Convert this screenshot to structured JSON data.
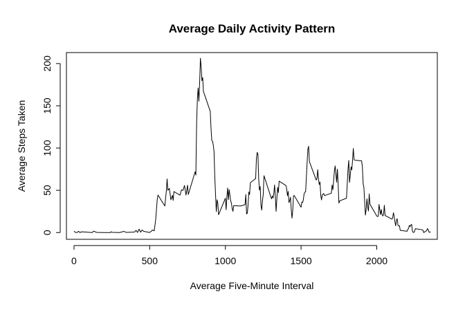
{
  "chart_data": {
    "type": "line",
    "title": "Average Daily Activity Pattern",
    "xlabel": "Average Five-Minute Interval",
    "ylabel": "Average Steps Taken",
    "xlim": [
      -50,
      2400
    ],
    "ylim": [
      -8,
      213
    ],
    "x_ticks": [
      0,
      500,
      1000,
      1500,
      2000
    ],
    "y_ticks": [
      0,
      50,
      100,
      150,
      200
    ],
    "grid": false,
    "legend": "none",
    "series": [
      {
        "color": "#000000",
        "points": [
          [
            0,
            1.7
          ],
          [
            10,
            0.1
          ],
          [
            20,
            0.1
          ],
          [
            30,
            1.5
          ],
          [
            40,
            0.0
          ],
          [
            50,
            0.9
          ],
          [
            100,
            0.3
          ],
          [
            120,
            0.0
          ],
          [
            130,
            1.7
          ],
          [
            150,
            0.2
          ],
          [
            200,
            0.0
          ],
          [
            240,
            0.0
          ],
          [
            245,
            1.0
          ],
          [
            250,
            0.3
          ],
          [
            300,
            0.0
          ],
          [
            330,
            1.4
          ],
          [
            345,
            0.2
          ],
          [
            400,
            0.6
          ],
          [
            410,
            2.6
          ],
          [
            420,
            0.1
          ],
          [
            430,
            4.1
          ],
          [
            440,
            0.4
          ],
          [
            450,
            3.1
          ],
          [
            460,
            1.5
          ],
          [
            470,
            1.1
          ],
          [
            500,
            0.1
          ],
          [
            520,
            3.0
          ],
          [
            530,
            2.1
          ],
          [
            540,
            16.0
          ],
          [
            550,
            39.5
          ],
          [
            555,
            44.4
          ],
          [
            600,
            31.4
          ],
          [
            610,
            49.3
          ],
          [
            615,
            63.4
          ],
          [
            620,
            50.0
          ],
          [
            630,
            52.2
          ],
          [
            640,
            38.8
          ],
          [
            650,
            44.0
          ],
          [
            655,
            38.0
          ],
          [
            660,
            48.5
          ],
          [
            700,
            44.2
          ],
          [
            710,
            50.5
          ],
          [
            720,
            49.9
          ],
          [
            730,
            55.7
          ],
          [
            740,
            44.3
          ],
          [
            750,
            56.0
          ],
          [
            755,
            45.0
          ],
          [
            800,
            71.9
          ],
          [
            805,
            68.0
          ],
          [
            810,
            129.4
          ],
          [
            815,
            157.5
          ],
          [
            820,
            171.2
          ],
          [
            825,
            155.4
          ],
          [
            830,
            177.3
          ],
          [
            835,
            206.2
          ],
          [
            840,
            195.9
          ],
          [
            845,
            179.6
          ],
          [
            850,
            183.4
          ],
          [
            855,
            167.0
          ],
          [
            900,
            143.5
          ],
          [
            905,
            124.0
          ],
          [
            910,
            109.1
          ],
          [
            915,
            108.1
          ],
          [
            920,
            103.7
          ],
          [
            925,
            95.9
          ],
          [
            930,
            66.2
          ],
          [
            935,
            45.2
          ],
          [
            940,
            24.8
          ],
          [
            945,
            38.8
          ],
          [
            950,
            34.98
          ],
          [
            955,
            21.1
          ],
          [
            1000,
            40.6
          ],
          [
            1005,
            27.0
          ],
          [
            1010,
            42.4
          ],
          [
            1015,
            52.7
          ],
          [
            1020,
            38.9
          ],
          [
            1025,
            50.8
          ],
          [
            1030,
            44.3
          ],
          [
            1035,
            37.4
          ],
          [
            1040,
            34.7
          ],
          [
            1045,
            28.3
          ],
          [
            1050,
            25.1
          ],
          [
            1055,
            31.9
          ],
          [
            1100,
            31.4
          ],
          [
            1130,
            33.0
          ],
          [
            1135,
            45.0
          ],
          [
            1140,
            22.0
          ],
          [
            1145,
            23.0
          ],
          [
            1150,
            33.0
          ],
          [
            1155,
            48.0
          ],
          [
            1160,
            45.0
          ],
          [
            1165,
            59.0
          ],
          [
            1200,
            63.9
          ],
          [
            1205,
            87.5
          ],
          [
            1210,
            94.8
          ],
          [
            1215,
            92.8
          ],
          [
            1220,
            63.4
          ],
          [
            1225,
            50.2
          ],
          [
            1230,
            54.5
          ],
          [
            1235,
            32.4
          ],
          [
            1240,
            26.5
          ],
          [
            1245,
            37.7
          ],
          [
            1250,
            45.1
          ],
          [
            1255,
            67.3
          ],
          [
            1300,
            42.3
          ],
          [
            1305,
            39.9
          ],
          [
            1310,
            43.3
          ],
          [
            1315,
            40.98
          ],
          [
            1320,
            46.2
          ],
          [
            1325,
            56.4
          ],
          [
            1330,
            42.8
          ],
          [
            1335,
            25.1
          ],
          [
            1340,
            39.9
          ],
          [
            1345,
            53.5
          ],
          [
            1350,
            47.3
          ],
          [
            1355,
            60.8
          ],
          [
            1400,
            55.7
          ],
          [
            1405,
            51.9
          ],
          [
            1410,
            43.6
          ],
          [
            1415,
            48.7
          ],
          [
            1420,
            35.5
          ],
          [
            1425,
            37.5
          ],
          [
            1430,
            41.8
          ],
          [
            1435,
            27.5
          ],
          [
            1440,
            17.1
          ],
          [
            1445,
            26.1
          ],
          [
            1450,
            43.6
          ],
          [
            1455,
            43.8
          ],
          [
            1500,
            30.0
          ],
          [
            1505,
            36.1
          ],
          [
            1510,
            35.5
          ],
          [
            1515,
            38.8
          ],
          [
            1520,
            45.96
          ],
          [
            1525,
            47.8
          ],
          [
            1530,
            48.1
          ],
          [
            1535,
            65.3
          ],
          [
            1540,
            82.9
          ],
          [
            1545,
            98.7
          ],
          [
            1550,
            102.1
          ],
          [
            1555,
            83.96
          ],
          [
            1600,
            62.1
          ],
          [
            1605,
            64.1
          ],
          [
            1610,
            74.5
          ],
          [
            1615,
            63.2
          ],
          [
            1620,
            56.9
          ],
          [
            1625,
            59.8
          ],
          [
            1630,
            43.9
          ],
          [
            1635,
            38.6
          ],
          [
            1640,
            44.7
          ],
          [
            1645,
            45.5
          ],
          [
            1650,
            46.2
          ],
          [
            1655,
            43.7
          ],
          [
            1700,
            46.6
          ],
          [
            1705,
            56.3
          ],
          [
            1710,
            50.7
          ],
          [
            1715,
            61.2
          ],
          [
            1720,
            72.7
          ],
          [
            1725,
            78.9
          ],
          [
            1730,
            68.9
          ],
          [
            1735,
            59.7
          ],
          [
            1740,
            75.1
          ],
          [
            1745,
            56.5
          ],
          [
            1750,
            34.8
          ],
          [
            1755,
            37.5
          ],
          [
            1800,
            40.7
          ],
          [
            1805,
            58.0
          ],
          [
            1810,
            74.7
          ],
          [
            1815,
            85.3
          ],
          [
            1820,
            59.3
          ],
          [
            1825,
            67.8
          ],
          [
            1830,
            77.7
          ],
          [
            1835,
            74.2
          ],
          [
            1840,
            85.3
          ],
          [
            1845,
            99.5
          ],
          [
            1850,
            86.6
          ],
          [
            1855,
            85.6
          ],
          [
            1900,
            84.9
          ],
          [
            1905,
            77.8
          ],
          [
            1910,
            58.0
          ],
          [
            1915,
            53.4
          ],
          [
            1920,
            36.3
          ],
          [
            1925,
            20.7
          ],
          [
            1930,
            27.4
          ],
          [
            1935,
            40.0
          ],
          [
            1940,
            30.2
          ],
          [
            1945,
            25.5
          ],
          [
            1950,
            45.7
          ],
          [
            1955,
            33.5
          ],
          [
            2000,
            19.6
          ],
          [
            2005,
            19.0
          ],
          [
            2010,
            19.3
          ],
          [
            2015,
            33.3
          ],
          [
            2020,
            26.8
          ],
          [
            2025,
            21.2
          ],
          [
            2030,
            27.3
          ],
          [
            2035,
            21.3
          ],
          [
            2040,
            19.6
          ],
          [
            2045,
            21.3
          ],
          [
            2050,
            32.3
          ],
          [
            2055,
            20.2
          ],
          [
            2100,
            15.9
          ],
          [
            2105,
            17.2
          ],
          [
            2110,
            23.5
          ],
          [
            2115,
            19.2
          ],
          [
            2120,
            12.5
          ],
          [
            2125,
            8.0
          ],
          [
            2130,
            14.7
          ],
          [
            2135,
            16.3
          ],
          [
            2140,
            8.7
          ],
          [
            2145,
            7.8
          ],
          [
            2150,
            8.1
          ],
          [
            2155,
            2.6
          ],
          [
            2200,
            1.5
          ],
          [
            2205,
            3.7
          ],
          [
            2210,
            4.8
          ],
          [
            2215,
            8.5
          ],
          [
            2220,
            7.1
          ],
          [
            2225,
            8.7
          ],
          [
            2230,
            9.8
          ],
          [
            2235,
            2.2
          ],
          [
            2240,
            0.3
          ],
          [
            2245,
            0.1
          ],
          [
            2250,
            1.6
          ],
          [
            2255,
            4.6
          ],
          [
            2300,
            3.3
          ],
          [
            2305,
            2.8
          ],
          [
            2310,
            0.0
          ],
          [
            2315,
            0.8
          ],
          [
            2320,
            1.0
          ],
          [
            2325,
            1.6
          ],
          [
            2330,
            2.6
          ],
          [
            2335,
            4.7
          ],
          [
            2340,
            3.3
          ],
          [
            2345,
            0.6
          ],
          [
            2350,
            0.2
          ],
          [
            2355,
            1.1
          ]
        ]
      }
    ]
  }
}
